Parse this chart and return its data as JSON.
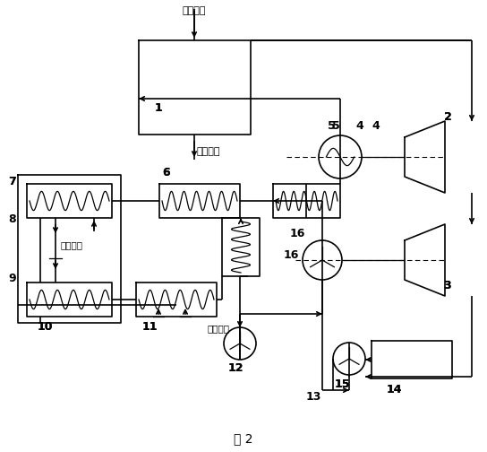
{
  "fig_width": 5.44,
  "fig_height": 5.04,
  "dpi": 100,
  "smoke_in": "烟气进口",
  "smoke_out": "烟气出口",
  "cool_out": "冷却水出",
  "cool_in": "冷却水进",
  "fig_label": "图 2",
  "lw": 1.0
}
